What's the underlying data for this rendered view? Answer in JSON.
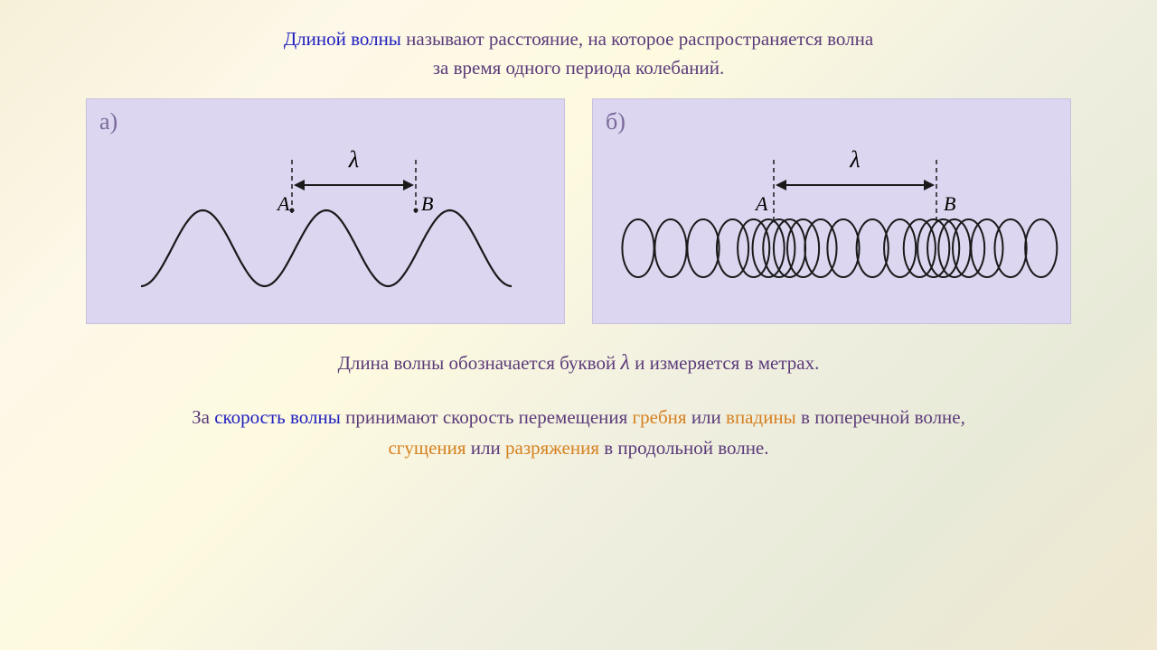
{
  "definition": {
    "term": "Длиной волны",
    "text1": " называют расстояние, на которое распространяется волна",
    "text2": "за время одного периода колебаний."
  },
  "diagramA": {
    "label": "а)",
    "lambda": "λ",
    "pointA": "A",
    "pointB": "B",
    "colors": {
      "stroke": "#1a1a1a",
      "background": "#dcd6f0"
    },
    "sine": {
      "amplitude": 42,
      "periods": 3,
      "startX": 60,
      "endX": 470,
      "baselineY": 165,
      "strokeWidth": 2.2
    },
    "markers": {
      "peak1X": 227,
      "peak2X": 364,
      "labelY": 115,
      "lambdaY": 75,
      "arrowY": 95
    }
  },
  "diagramB": {
    "label": "б)",
    "lambda": "λ",
    "pointA": "A",
    "pointB": "B",
    "colors": {
      "stroke": "#1a1a1a",
      "background": "#dcd6f0"
    },
    "spring": {
      "baselineY": 165,
      "radius": 32,
      "startX": 50,
      "endX": 500,
      "strokeWidth": 2
    },
    "markers": {
      "compressX": 200,
      "nextCompressX": 380,
      "labelY": 115,
      "lambdaY": 75,
      "arrowY": 95
    }
  },
  "notation": {
    "pre": "Длина волны обозначается буквой ",
    "lambda": "λ",
    "post": " и измеряется в метрах."
  },
  "speedDef": {
    "pre": "За ",
    "speedTerm": "скорость волны",
    "mid1": " принимают скорость перемещения ",
    "h1": "гребня",
    "mid2": " или ",
    "h2": "впадины",
    "mid3": " в поперечной волне,",
    "line2pre": "",
    "h3": "сгущения",
    "mid4": " или ",
    "h4": "разряжения",
    "mid5": " в продольной волне."
  }
}
